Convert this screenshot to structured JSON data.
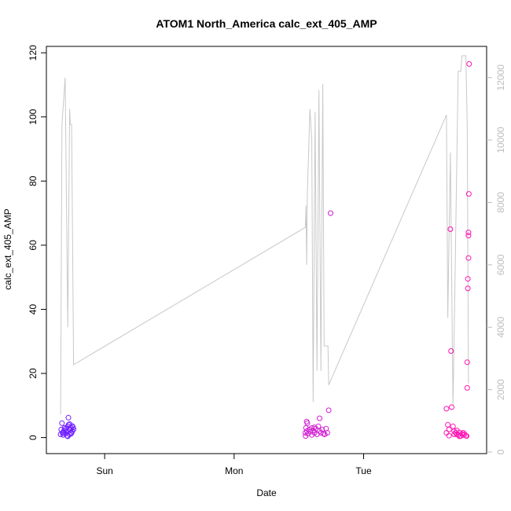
{
  "chart_data": {
    "type": "scatter",
    "title": "ATOM1 North_America calc_ext_405_AMP",
    "xlabel": "Date",
    "ylabel": "calc_ext_405_AMP",
    "x_unit": "days",
    "xlim": [
      -0.45,
      2.95
    ],
    "ylim": [
      -5,
      122
    ],
    "y2lim": [
      -50,
      13000
    ],
    "x_ticks": [
      {
        "value": 0,
        "label": "Sun"
      },
      {
        "value": 1,
        "label": "Mon"
      },
      {
        "value": 2,
        "label": "Tue"
      }
    ],
    "y_ticks": [
      0,
      20,
      40,
      60,
      80,
      100,
      120
    ],
    "y2_ticks": [
      0,
      2000,
      4000,
      6000,
      8000,
      10000,
      12000
    ],
    "line_color": "#c8c8c8",
    "right_axis_color": "#bdbdbd",
    "line_series": [
      [
        -0.34,
        1200
      ],
      [
        -0.33,
        10500
      ],
      [
        -0.305,
        12000
      ],
      [
        -0.285,
        4000
      ],
      [
        -0.27,
        11000
      ],
      [
        -0.265,
        10500
      ],
      [
        -0.255,
        10500
      ],
      [
        -0.24,
        2800
      ],
      [
        1.55,
        7200
      ],
      [
        1.555,
        7900
      ],
      [
        1.56,
        6000
      ],
      [
        1.565,
        8200
      ],
      [
        1.585,
        11000
      ],
      [
        1.6,
        10000
      ],
      [
        1.61,
        1600
      ],
      [
        1.625,
        10900
      ],
      [
        1.64,
        2600
      ],
      [
        1.655,
        11600
      ],
      [
        1.67,
        2600
      ],
      [
        1.685,
        11800
      ],
      [
        1.695,
        3400
      ],
      [
        1.7,
        3400
      ],
      [
        1.725,
        3400
      ],
      [
        1.73,
        2150
      ],
      [
        2.64,
        10800
      ],
      [
        2.65,
        4300
      ],
      [
        2.67,
        9600
      ],
      [
        2.69,
        1500
      ],
      [
        2.7,
        3900
      ],
      [
        2.73,
        12200
      ],
      [
        2.75,
        12200
      ],
      [
        2.76,
        12700
      ],
      [
        2.79,
        12700
      ],
      [
        2.8,
        10500
      ],
      [
        2.81,
        2200
      ]
    ],
    "scatter_series": [
      {
        "color": "#6f1eff",
        "points": [
          [
            -0.34,
            1.0
          ],
          [
            -0.335,
            2.5
          ],
          [
            -0.33,
            4.5
          ],
          [
            -0.325,
            1.5
          ],
          [
            -0.32,
            0.8
          ],
          [
            -0.315,
            2.0
          ],
          [
            -0.31,
            3.0
          ],
          [
            -0.305,
            1.2
          ],
          [
            -0.3,
            2.2
          ],
          [
            -0.295,
            1.8
          ],
          [
            -0.29,
            0.6
          ],
          [
            -0.285,
            3.5
          ],
          [
            -0.28,
            6.2
          ],
          [
            -0.278,
            4.0
          ],
          [
            -0.275,
            2.8
          ],
          [
            -0.27,
            1.0
          ],
          [
            -0.265,
            2.5
          ],
          [
            -0.26,
            3.0
          ],
          [
            -0.255,
            1.5
          ],
          [
            -0.25,
            2.0
          ],
          [
            -0.245,
            3.2
          ],
          [
            -0.24,
            2.6
          ],
          [
            -0.285,
            0.4
          ],
          [
            -0.3,
            2.8
          ],
          [
            -0.32,
            1.6
          ],
          [
            -0.27,
            4.2
          ],
          [
            -0.26,
            1.2
          ],
          [
            -0.25,
            3.6
          ]
        ]
      },
      {
        "color": "#d21ed2",
        "points": [
          [
            1.55,
            1.5
          ],
          [
            1.552,
            0.5
          ],
          [
            1.555,
            3.0
          ],
          [
            1.56,
            5.0
          ],
          [
            1.562,
            2.0
          ],
          [
            1.565,
            4.5
          ],
          [
            1.57,
            1.2
          ],
          [
            1.58,
            2.5
          ],
          [
            1.59,
            1.8
          ],
          [
            1.6,
            3.0
          ],
          [
            1.61,
            2.2
          ],
          [
            1.62,
            1.5
          ],
          [
            1.63,
            2.8
          ],
          [
            1.64,
            1.0
          ],
          [
            1.65,
            3.5
          ],
          [
            1.66,
            2.0
          ],
          [
            1.67,
            1.5
          ],
          [
            1.68,
            2.5
          ],
          [
            1.69,
            1.2
          ],
          [
            1.7,
            1.0
          ],
          [
            1.71,
            2.8
          ],
          [
            1.72,
            1.5
          ],
          [
            1.73,
            8.5
          ],
          [
            1.745,
            70.0
          ],
          [
            1.62,
            3.2
          ],
          [
            1.66,
            6.0
          ],
          [
            1.6,
            0.8
          ]
        ]
      },
      {
        "color": "#ff14b4",
        "points": [
          [
            2.64,
            9.0
          ],
          [
            2.65,
            4.0
          ],
          [
            2.66,
            2.5
          ],
          [
            2.67,
            65.0
          ],
          [
            2.675,
            27.0
          ],
          [
            2.68,
            9.5
          ],
          [
            2.69,
            3.5
          ],
          [
            2.7,
            2.0
          ],
          [
            2.71,
            1.5
          ],
          [
            2.72,
            1.0
          ],
          [
            2.73,
            0.8
          ],
          [
            2.74,
            1.6
          ],
          [
            2.75,
            0.5
          ],
          [
            2.76,
            1.2
          ],
          [
            2.77,
            0.8
          ],
          [
            2.78,
            1.0
          ],
          [
            2.79,
            0.6
          ],
          [
            2.795,
            0.5
          ],
          [
            2.8,
            15.5
          ],
          [
            2.8,
            23.5
          ],
          [
            2.805,
            46.5
          ],
          [
            2.805,
            49.5
          ],
          [
            2.81,
            56.0
          ],
          [
            2.81,
            63.0
          ],
          [
            2.81,
            64.0
          ],
          [
            2.812,
            76.0
          ],
          [
            2.815,
            116.5
          ],
          [
            2.64,
            1.5
          ],
          [
            2.66,
            0.6
          ],
          [
            2.7,
            1.0
          ],
          [
            2.72,
            2.2
          ],
          [
            2.74,
            0.4
          ],
          [
            2.77,
            1.5
          ]
        ]
      }
    ]
  }
}
